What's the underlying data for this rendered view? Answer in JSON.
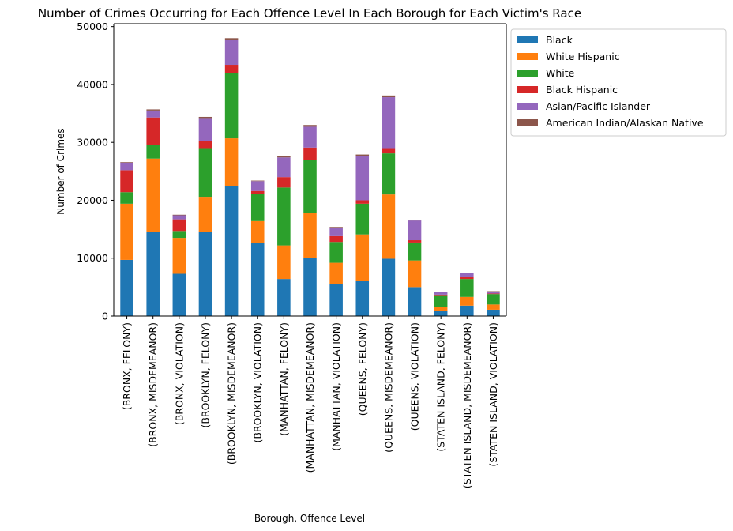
{
  "chart_data": {
    "type": "bar",
    "stacked": true,
    "title": "Number of Crimes Occurring for Each Offence Level In Each Borough for Each Victim's Race",
    "xlabel": "Borough, Offence Level",
    "ylabel": "Number of Crimes",
    "ylim": [
      0,
      50500
    ],
    "yticks": [
      0,
      10000,
      20000,
      30000,
      40000,
      50000
    ],
    "yticklabels": [
      "0",
      "10000",
      "20000",
      "30000",
      "40000",
      "50000"
    ],
    "legend_position": "outside-top-right",
    "categories": [
      "(BRONX, FELONY)",
      "(BRONX, MISDEMEANOR)",
      "(BRONX, VIOLATION)",
      "(BROOKLYN, FELONY)",
      "(BROOKLYN, MISDEMEANOR)",
      "(BROOKLYN, VIOLATION)",
      "(MANHATTAN, FELONY)",
      "(MANHATTAN, MISDEMEANOR)",
      "(MANHATTAN, VIOLATION)",
      "(QUEENS, FELONY)",
      "(QUEENS, MISDEMEANOR)",
      "(QUEENS, VIOLATION)",
      "(STATEN ISLAND, FELONY)",
      "(STATEN ISLAND, MISDEMEANOR)",
      "(STATEN ISLAND, VIOLATION)"
    ],
    "series": [
      {
        "name": "Black",
        "color": "#1f77b4",
        "values": [
          9700,
          14500,
          7300,
          14500,
          22400,
          12600,
          6400,
          10000,
          5500,
          6100,
          9900,
          5000,
          900,
          1800,
          1100
        ]
      },
      {
        "name": "White Hispanic",
        "color": "#ff7f0e",
        "values": [
          9700,
          12700,
          6200,
          6100,
          8300,
          3800,
          5800,
          7800,
          3700,
          8000,
          11100,
          4600,
          700,
          1500,
          900
        ]
      },
      {
        "name": "White",
        "color": "#2ca02c",
        "values": [
          2000,
          2400,
          1200,
          8400,
          11300,
          4700,
          10000,
          9100,
          3600,
          5300,
          7100,
          3100,
          2000,
          3100,
          1800
        ]
      },
      {
        "name": "Black Hispanic",
        "color": "#d62728",
        "values": [
          3800,
          4700,
          2000,
          1200,
          1400,
          500,
          1800,
          2200,
          1000,
          600,
          900,
          400,
          100,
          300,
          100
        ]
      },
      {
        "name": "Asian/Pacific Islander",
        "color": "#9467bd",
        "values": [
          1300,
          1200,
          700,
          4000,
          4300,
          1700,
          3400,
          3600,
          1500,
          7700,
          8800,
          3400,
          400,
          700,
          300
        ]
      },
      {
        "name": "American Indian/Alaskan Native",
        "color": "#8c564b",
        "values": [
          100,
          200,
          100,
          200,
          300,
          100,
          200,
          300,
          100,
          200,
          300,
          100,
          100,
          100,
          100
        ]
      }
    ]
  }
}
